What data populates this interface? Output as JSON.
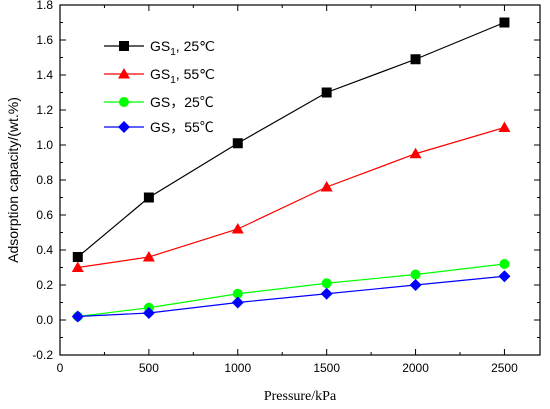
{
  "chart_data": {
    "type": "line",
    "xlabel": "Pressure/kPa",
    "ylabel": "Adsorption capacity/(wt.%)",
    "xlim": [
      0,
      2700
    ],
    "ylim": [
      -0.2,
      1.8
    ],
    "x_ticks": [
      0,
      500,
      1000,
      1500,
      2000,
      2500
    ],
    "x_tick_labels": [
      "0",
      "500",
      "1000",
      "1500",
      "2000",
      "2500"
    ],
    "y_ticks": [
      -0.2,
      0.0,
      0.2,
      0.4,
      0.6,
      0.8,
      1.0,
      1.2,
      1.4,
      1.6,
      1.8
    ],
    "y_tick_labels": [
      "-0.2",
      "0.0",
      "0.2",
      "0.4",
      "0.6",
      "0.8",
      "1.0",
      "1.2",
      "1.4",
      "1.6",
      "1.8"
    ],
    "grid": false,
    "legend_position": "top-left",
    "x": [
      100,
      500,
      1000,
      1500,
      2000,
      2500
    ],
    "series": [
      {
        "legend_main": "GS",
        "legend_sub": "1",
        "legend_tail": ", 25℃",
        "color": "#000000",
        "marker": "square",
        "values": [
          0.36,
          0.7,
          1.01,
          1.3,
          1.49,
          1.7
        ]
      },
      {
        "legend_main": "GS",
        "legend_sub": "1",
        "legend_tail": ", 55℃",
        "color": "#ff0000",
        "marker": "triangle",
        "values": [
          0.3,
          0.36,
          0.52,
          0.76,
          0.95,
          1.1
        ]
      },
      {
        "legend_main": "GS",
        "legend_sub": "",
        "legend_tail": "，25℃",
        "color": "#00ff00",
        "marker": "circle",
        "values": [
          0.02,
          0.07,
          0.15,
          0.21,
          0.26,
          0.32
        ]
      },
      {
        "legend_main": "GS",
        "legend_sub": "",
        "legend_tail": "，55℃",
        "color": "#0000ff",
        "marker": "diamond",
        "values": [
          0.02,
          0.04,
          0.1,
          0.15,
          0.2,
          0.25
        ]
      }
    ]
  }
}
